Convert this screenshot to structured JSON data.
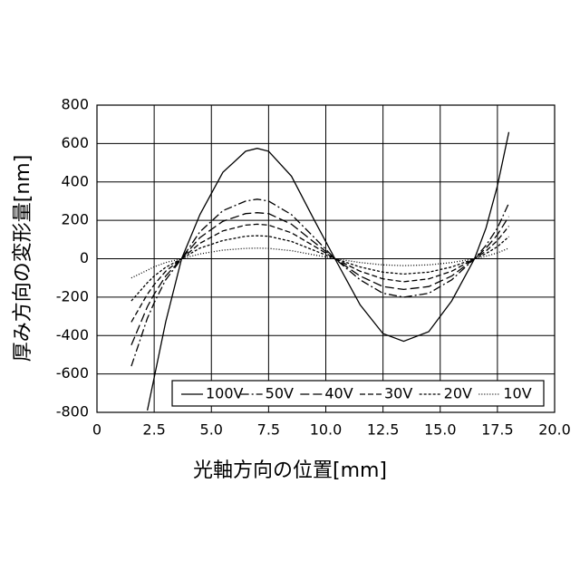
{
  "chart_data": {
    "type": "line",
    "xlabel": "光軸方向の位置[mm]",
    "ylabel": "厚み方向の変形量[nm]",
    "x": [
      1.5,
      2.2,
      2.5,
      3.0,
      3.7,
      4.5,
      5.5,
      6.5,
      7.0,
      7.5,
      8.5,
      9.5,
      10.4,
      11.5,
      12.5,
      13.4,
      14.5,
      15.5,
      16.5,
      17.0,
      17.5,
      18.0
    ],
    "series": [
      {
        "name": "100V",
        "color": "#000000",
        "dash": "none",
        "values": [
          null,
          -790,
          -620,
          -330,
          0,
          230,
          450,
          560,
          575,
          560,
          430,
          200,
          0,
          -240,
          -390,
          -430,
          -380,
          -220,
          0,
          160,
          380,
          660
        ]
      },
      {
        "name": "50V",
        "color": "#000000",
        "dash": "9,3,2,3",
        "values": [
          -560,
          -310,
          -230,
          -110,
          0,
          140,
          250,
          300,
          310,
          300,
          230,
          110,
          0,
          -110,
          -180,
          -200,
          -180,
          -110,
          0,
          70,
          160,
          290
        ]
      },
      {
        "name": "40V",
        "color": "#000000",
        "dash": "10,4",
        "values": [
          -450,
          -250,
          -185,
          -90,
          0,
          110,
          195,
          235,
          240,
          235,
          180,
          85,
          0,
          -90,
          -145,
          -160,
          -145,
          -90,
          0,
          55,
          125,
          220
        ]
      },
      {
        "name": "30V",
        "color": "#000000",
        "dash": "6,3",
        "values": [
          -330,
          -185,
          -135,
          -65,
          0,
          80,
          145,
          175,
          180,
          175,
          135,
          65,
          0,
          -65,
          -105,
          -120,
          -105,
          -65,
          0,
          40,
          95,
          170
        ]
      },
      {
        "name": "20V",
        "color": "#000000",
        "dash": "3,2",
        "values": [
          -220,
          -125,
          -90,
          -45,
          0,
          55,
          95,
          117,
          120,
          117,
          90,
          43,
          0,
          -43,
          -70,
          -80,
          -70,
          -43,
          0,
          27,
          63,
          115
        ]
      },
      {
        "name": "10V",
        "color": "#000000",
        "dash": "1,2",
        "values": [
          -100,
          -60,
          -42,
          -20,
          0,
          25,
          45,
          54,
          55,
          54,
          42,
          20,
          0,
          -20,
          -32,
          -36,
          -32,
          -20,
          0,
          13,
          30,
          55
        ]
      }
    ],
    "xlim": [
      0,
      20
    ],
    "xticks": [
      0,
      2.5,
      {
        "value": 5,
        "label": "5.0"
      },
      7.5,
      {
        "value": 10,
        "label": "10.0"
      },
      12.5,
      {
        "value": 15,
        "label": "15.0"
      },
      17.5,
      {
        "value": 20,
        "label": "20.0"
      }
    ],
    "ylim": [
      -800,
      800
    ],
    "yticks": [
      -800,
      -600,
      -400,
      -200,
      0,
      200,
      400,
      600,
      800
    ],
    "grid": true,
    "legend": "bottom"
  }
}
